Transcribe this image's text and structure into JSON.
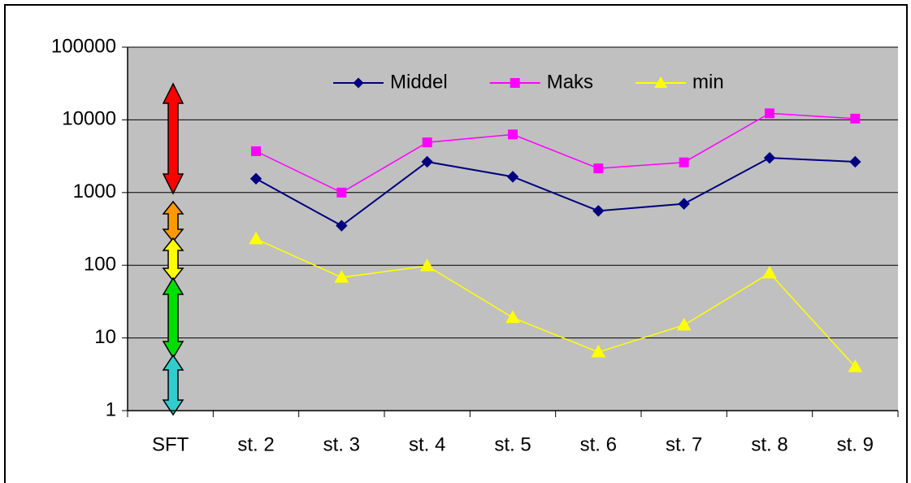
{
  "chart_data": {
    "type": "line",
    "categories": [
      "SFT",
      "st. 2",
      "st. 3",
      "st. 4",
      "st. 5",
      "st. 6",
      "st. 7",
      "st. 8",
      "st. 9"
    ],
    "series": [
      {
        "name": "Middel",
        "color": "#000080",
        "marker": "diamond",
        "values": [
          null,
          1550,
          350,
          2650,
          1650,
          560,
          700,
          3000,
          2650
        ]
      },
      {
        "name": "Maks",
        "color": "#ff00ff",
        "marker": "square",
        "values": [
          null,
          3700,
          1000,
          4900,
          6300,
          2150,
          2600,
          12300,
          10400
        ]
      },
      {
        "name": "min",
        "color": "#ffff00",
        "marker": "triangle",
        "values": [
          null,
          230,
          68,
          98,
          19,
          6.4,
          15,
          78,
          4
        ]
      }
    ],
    "ylim": [
      1,
      100000
    ],
    "yticks": [
      1,
      10,
      100,
      1000,
      10000,
      100000
    ],
    "log_scale": true,
    "grid": true,
    "legend": "top"
  }
}
